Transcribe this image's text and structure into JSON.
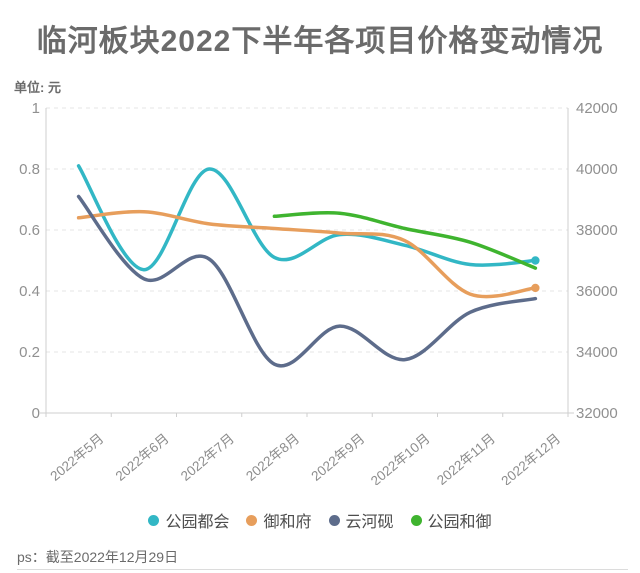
{
  "title": "临河板块2022下半年各项目价格变动情况",
  "unit_label": "单位: 元",
  "footnote": "ps：截至2022年12月29日",
  "palette": {
    "title_text": "#6b6b6b",
    "axis_text": "#909090",
    "x_label_text": "#8c8c8c",
    "legend_text": "#4d4d4d",
    "grid_line": "#e4e4e4",
    "axis_line": "#cfcfcf",
    "background": "#ffffff"
  },
  "legend": {
    "items": [
      {
        "label": "公园都会",
        "color": "#32b7c5"
      },
      {
        "label": "御和府",
        "color": "#e79e5c"
      },
      {
        "label": "云河砚",
        "color": "#5d6c8b"
      },
      {
        "label": "公园和御",
        "color": "#3fb42f"
      }
    ]
  },
  "chart_data": {
    "type": "line",
    "smooth": true,
    "grid": "dashed-horizontal",
    "legend_position": "bottom",
    "title": "临河板块2022下半年各项目价格变动情况",
    "categories": [
      "2022年5月",
      "2022年6月",
      "2022年7月",
      "2022年8月",
      "2022年9月",
      "2022年10月",
      "2022年11月",
      "2022年12月"
    ],
    "left_axis": {
      "label": "单位: 元",
      "min": 0,
      "max": 1,
      "ticks": [
        "0",
        "0.2",
        "0.4",
        "0.6",
        "0.8",
        "1"
      ]
    },
    "right_axis": {
      "min": 32000,
      "max": 42000,
      "ticks": [
        "32000",
        "34000",
        "36000",
        "38000",
        "40000",
        "42000"
      ]
    },
    "series": [
      {
        "name": "公园都会",
        "color": "#32b7c5",
        "end_dot": true,
        "values_yuan": [
          40100,
          36700,
          40000,
          37100,
          37850,
          37500,
          36870,
          37000
        ],
        "norm": [
          0.81,
          0.47,
          0.8,
          0.51,
          0.585,
          0.55,
          0.487,
          0.5
        ]
      },
      {
        "name": "御和府",
        "color": "#e79e5c",
        "end_dot": true,
        "values_yuan": [
          38400,
          38600,
          38200,
          38050,
          37900,
          37650,
          35900,
          36100
        ],
        "norm": [
          0.64,
          0.66,
          0.62,
          0.605,
          0.59,
          0.565,
          0.39,
          0.41
        ]
      },
      {
        "name": "云河砚",
        "color": "#5d6c8b",
        "end_dot": false,
        "values_yuan": [
          39100,
          36400,
          37050,
          33600,
          34850,
          33750,
          35300,
          35750
        ],
        "norm": [
          0.71,
          0.44,
          0.505,
          0.16,
          0.285,
          0.175,
          0.33,
          0.375
        ]
      },
      {
        "name": "公园和御",
        "color": "#3fb42f",
        "end_dot": false,
        "values_yuan": [
          null,
          null,
          null,
          38450,
          38550,
          38050,
          37600,
          36750
        ],
        "norm": [
          null,
          null,
          null,
          0.645,
          0.655,
          0.605,
          0.56,
          0.475
        ]
      }
    ]
  }
}
